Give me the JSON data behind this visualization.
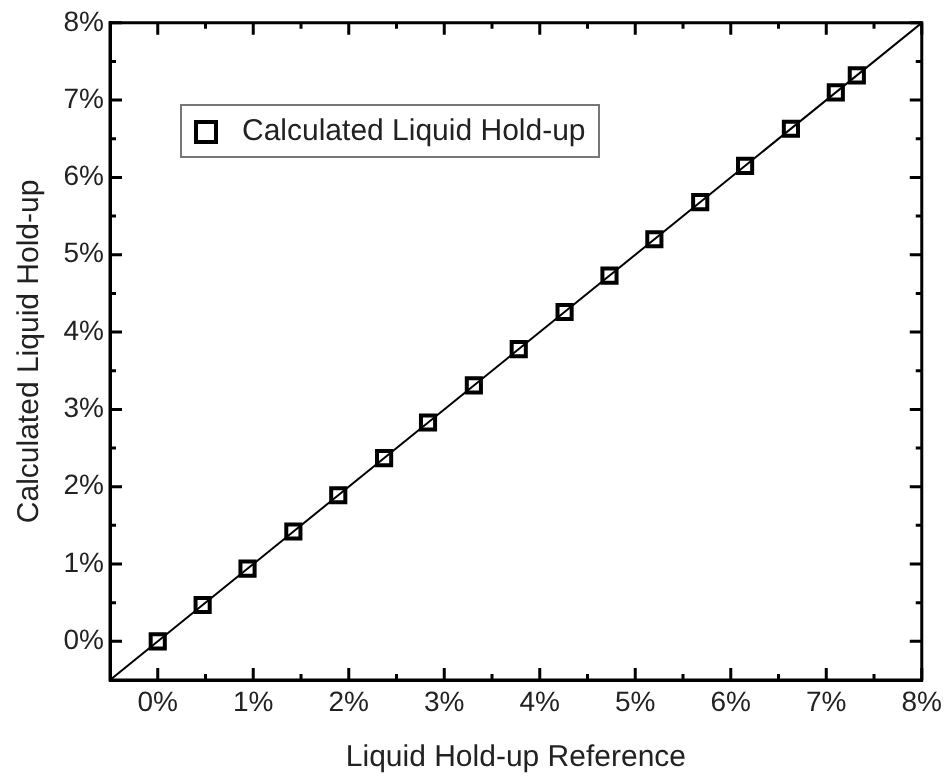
{
  "chart_data": {
    "type": "scatter",
    "xlabel": "Liquid Hold-up Reference",
    "ylabel": "Calculated Liquid Hold-up",
    "xlim": [
      -0.5,
      8
    ],
    "ylim": [
      -0.5,
      8
    ],
    "xticks": [
      {
        "value": 0,
        "label": "0%"
      },
      {
        "value": 0.5,
        "label": null
      },
      {
        "value": 1,
        "label": "1%"
      },
      {
        "value": 1.5,
        "label": null
      },
      {
        "value": 2,
        "label": "2%"
      },
      {
        "value": 2.5,
        "label": null
      },
      {
        "value": 3,
        "label": "3%"
      },
      {
        "value": 3.5,
        "label": null
      },
      {
        "value": 4,
        "label": "4%"
      },
      {
        "value": 4.5,
        "label": null
      },
      {
        "value": 5,
        "label": "5%"
      },
      {
        "value": 5.5,
        "label": null
      },
      {
        "value": 6,
        "label": "6%"
      },
      {
        "value": 6.5,
        "label": null
      },
      {
        "value": 7,
        "label": "7%"
      },
      {
        "value": 7.5,
        "label": null
      },
      {
        "value": 8,
        "label": "8%"
      }
    ],
    "yticks": [
      {
        "value": 0,
        "label": "0%"
      },
      {
        "value": 0.5,
        "label": null
      },
      {
        "value": 1,
        "label": "1%"
      },
      {
        "value": 1.5,
        "label": null
      },
      {
        "value": 2,
        "label": "2%"
      },
      {
        "value": 2.5,
        "label": null
      },
      {
        "value": 3,
        "label": "3%"
      },
      {
        "value": 3.5,
        "label": null
      },
      {
        "value": 4,
        "label": "4%"
      },
      {
        "value": 4.5,
        "label": null
      },
      {
        "value": 5,
        "label": "5%"
      },
      {
        "value": 5.5,
        "label": null
      },
      {
        "value": 6,
        "label": "6%"
      },
      {
        "value": 6.5,
        "label": null
      },
      {
        "value": 7,
        "label": "7%"
      },
      {
        "value": 7.5,
        "label": null
      },
      {
        "value": 8,
        "label": "8%"
      }
    ],
    "grid": false,
    "legend": "top left",
    "marker": "square",
    "series": [
      {
        "name": "Calculated Liquid Hold-up",
        "color": "#000000",
        "type": "scatter",
        "x": [
          0,
          0.47,
          0.94,
          1.42,
          1.89,
          2.37,
          2.83,
          3.31,
          3.78,
          4.26,
          4.73,
          5.2,
          5.68,
          6.15,
          6.63,
          7.1,
          7.32
        ],
        "values": [
          0,
          0.47,
          0.94,
          1.42,
          1.89,
          2.37,
          2.83,
          3.31,
          3.78,
          4.26,
          4.73,
          5.2,
          5.68,
          6.15,
          6.63,
          7.1,
          7.32
        ]
      },
      {
        "color": "#000000",
        "type": "line",
        "line_style": "solid",
        "marker": "none",
        "x": [
          -0.5,
          8
        ],
        "values": [
          -0.5,
          8
        ]
      }
    ]
  }
}
